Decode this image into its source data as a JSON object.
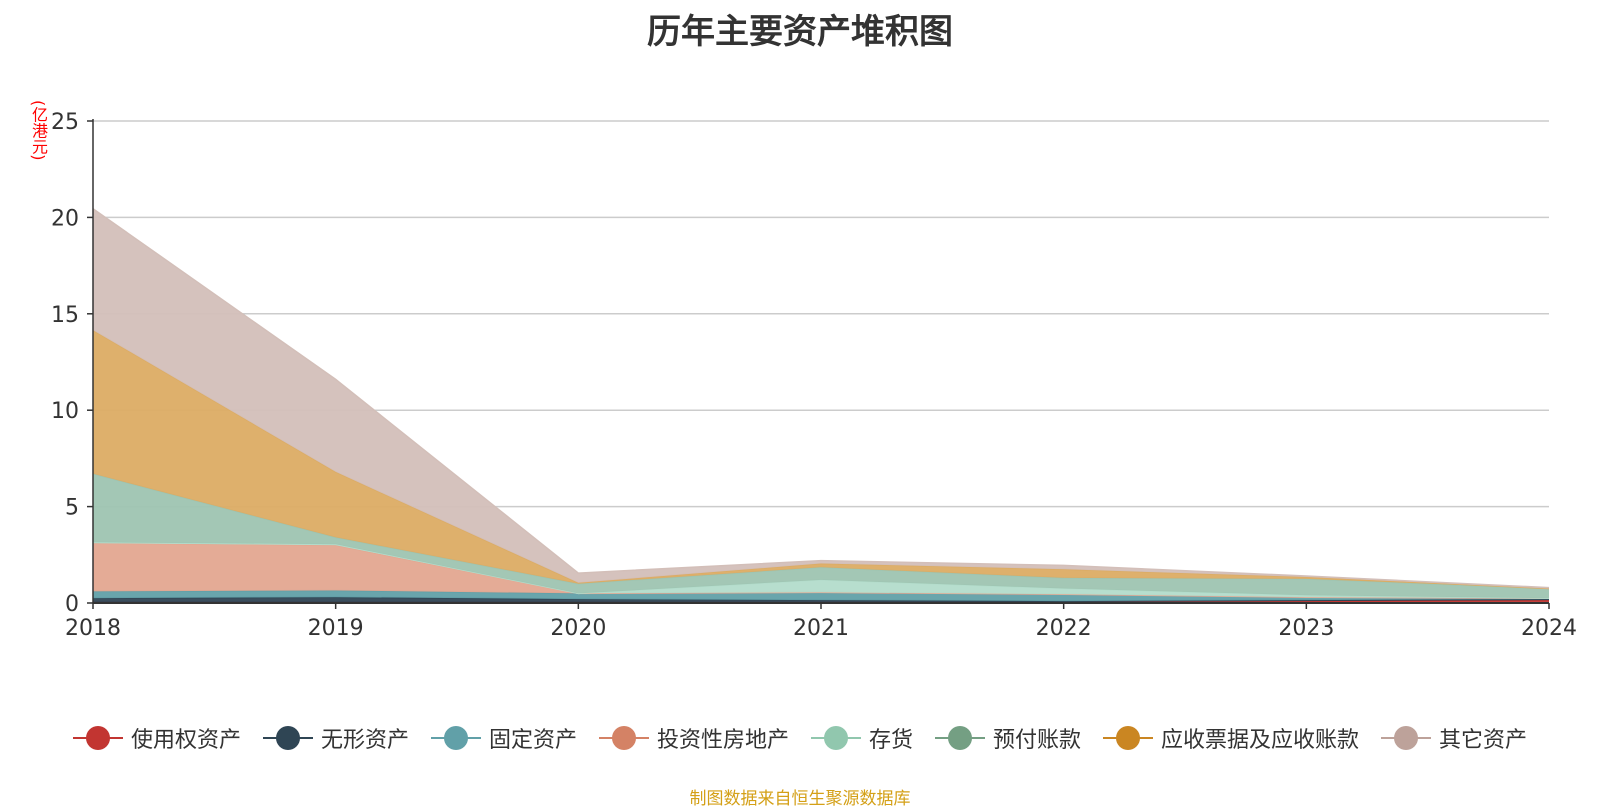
{
  "chart_data": {
    "type": "area",
    "stacked": true,
    "title": "历年主要资产堆积图",
    "unit_label": "(亿港元)",
    "x": [
      "2018",
      "2019",
      "2020",
      "2021",
      "2022",
      "2023",
      "2024"
    ],
    "ylim": [
      0,
      25
    ],
    "yticks": [
      "0",
      "5",
      "10",
      "15",
      "20",
      "25"
    ],
    "grid": true,
    "legend_position": "bottom",
    "series": [
      {
        "name": "使用权资产",
        "color": "#c23531",
        "fill": "#c23531",
        "values": [
          0.05,
          0.05,
          0.05,
          0.05,
          0.05,
          0.1,
          0.15
        ]
      },
      {
        "name": "无形资产",
        "color": "#2f4554",
        "fill": "#2f4554",
        "values": [
          0.2,
          0.25,
          0.15,
          0.1,
          0.05,
          0.05,
          0.05
        ]
      },
      {
        "name": "固定资产",
        "color": "#61a0a8",
        "fill": "#61a0a8",
        "values": [
          0.35,
          0.35,
          0.3,
          0.4,
          0.35,
          0.15,
          0.05
        ]
      },
      {
        "name": "投资性房地产",
        "color": "#d48265",
        "fill": "#e3a690",
        "values": [
          2.5,
          2.35,
          0.0,
          0.0,
          0.0,
          0.0,
          0.0
        ]
      },
      {
        "name": "存货",
        "color": "#91c7ae",
        "fill": "#b3dccb",
        "values": [
          0.05,
          0.05,
          0.0,
          0.65,
          0.3,
          0.1,
          0.0
        ]
      },
      {
        "name": "预付账款",
        "color": "#749f83",
        "fill": "#9ec4b1",
        "values": [
          3.55,
          0.35,
          0.5,
          0.65,
          0.55,
          0.85,
          0.5
        ]
      },
      {
        "name": "应收票据及应收账款",
        "color": "#ca8622",
        "fill": "#dcac64",
        "values": [
          7.45,
          3.4,
          0.05,
          0.2,
          0.45,
          0.1,
          0.0
        ]
      },
      {
        "name": "其它资产",
        "color": "#bda29a",
        "fill": "#d3bfb9",
        "values": [
          6.3,
          4.8,
          0.5,
          0.15,
          0.2,
          0.05,
          0.05
        ]
      }
    ]
  },
  "source": "制图数据来自恒生聚源数据库"
}
